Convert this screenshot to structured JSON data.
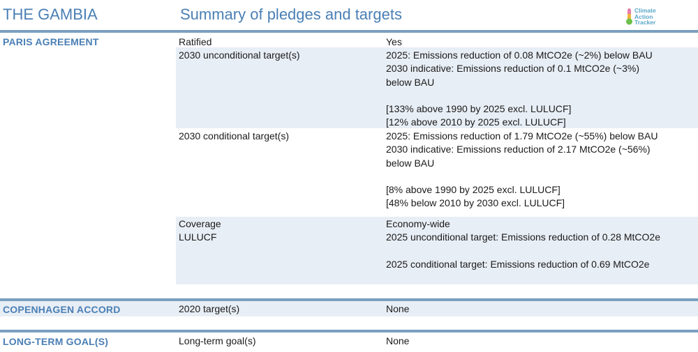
{
  "header": {
    "country": "THE GAMBIA",
    "title": "Summary of pledges and targets",
    "logo": {
      "lines": [
        "Climate",
        "Action",
        "Tracker"
      ],
      "icon": "thermometer-icon"
    }
  },
  "colors": {
    "accent": "#4a7fb5",
    "rule": "#7a9fbf",
    "shade": "#e8eef5"
  },
  "sections": {
    "paris": {
      "label": "PARIS AGREEMENT",
      "rows": [
        {
          "label": "Ratified",
          "value": [
            "Yes"
          ]
        },
        {
          "label": "2030 unconditional target(s)",
          "value": [
            "2025: Emissions reduction of 0.08 MtCO2e (~2%) below BAU",
            "2030 indicative: Emissions reduction of 0.1 MtCO2e (~3%)",
            "below BAU",
            "",
            "[133% above 1990 by 2025 excl. LULUCF]",
            "[12% above 2010 by 2025 excl. LULUCF]"
          ]
        },
        {
          "label": "2030 conditional target(s)",
          "value": [
            "2025: Emissions reduction of 1.79 MtCO2e (~55%) below BAU",
            "2030 indicative: Emissions reduction of 2.17 MtCO2e (~56%)",
            "below BAU",
            "",
            "[8% above 1990 by 2025 excl. LULUCF]",
            "[48% below 2010 by 2030 excl. LULUCF]"
          ]
        },
        {
          "label": "Coverage",
          "value": [
            "Economy-wide"
          ]
        },
        {
          "label": "LULUCF",
          "value": [
            "2025 unconditional target: Emissions reduction of 0.28 MtCO2e",
            "",
            "2025 conditional target: Emissions reduction of 0.69 MtCO2e"
          ]
        }
      ]
    },
    "copenhagen": {
      "label": "COPENHAGEN ACCORD",
      "rows": [
        {
          "label": "2020 target(s)",
          "value": [
            "None"
          ]
        }
      ]
    },
    "longterm": {
      "label": "LONG-TERM GOAL(S)",
      "rows": [
        {
          "label": "Long-term goal(s)",
          "value": [
            "None"
          ]
        }
      ]
    }
  }
}
